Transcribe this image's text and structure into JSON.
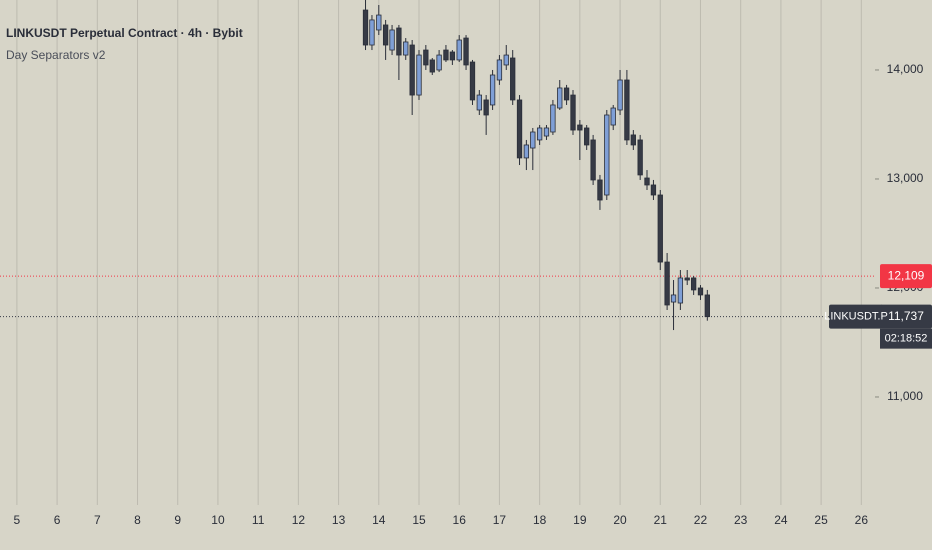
{
  "chart_data": {
    "type": "candlestick",
    "title": "LINKUSDT Perpetual Contract · 4h · Bybit",
    "subtitle": "Day Separators v2",
    "bull_color": "#7f9fd6",
    "bear_color": "#363a45",
    "xlim": [
      4.58,
      26.34
    ],
    "ylim": [
      10009,
      14642
    ],
    "xticks": [
      5,
      6,
      7,
      8,
      9,
      10,
      11,
      12,
      13,
      14,
      15,
      16,
      17,
      18,
      19,
      20,
      21,
      22,
      23,
      24,
      25,
      26
    ],
    "yticks": [
      {
        "value": 11000,
        "label": "11,000"
      },
      {
        "value": 12000,
        "label": "12,000"
      },
      {
        "value": 13000,
        "label": "13,000"
      },
      {
        "value": 14000,
        "label": "14,000"
      }
    ],
    "grid": true,
    "x": [
      13.67,
      13.83,
      14.0,
      14.17,
      14.33,
      14.5,
      14.67,
      14.83,
      15.0,
      15.17,
      15.33,
      15.5,
      15.67,
      15.83,
      16.0,
      16.17,
      16.33,
      16.5,
      16.67,
      16.83,
      17.0,
      17.17,
      17.33,
      17.5,
      17.67,
      17.83,
      18.0,
      18.17,
      18.33,
      18.5,
      18.67,
      18.83,
      19.0,
      19.17,
      19.33,
      19.5,
      19.67,
      19.83,
      20.0,
      20.17,
      20.33,
      20.5,
      20.67,
      20.83,
      21.0,
      21.17,
      21.33,
      21.5,
      21.67,
      21.83,
      22.0,
      22.17
    ],
    "open": [
      14550,
      14229,
      14367,
      14413,
      14183,
      14385,
      14137,
      14229,
      13770,
      14183,
      14092,
      14000,
      14183,
      14165,
      14092,
      14293,
      14073,
      13633,
      13725,
      13679,
      13908,
      14046,
      14110,
      13725,
      13193,
      13284,
      13358,
      13394,
      13431,
      13651,
      13835,
      13770,
      13495,
      13468,
      13358,
      12991,
      12853,
      13495,
      13633,
      13908,
      13404,
      13358,
      13009,
      12945,
      12853,
      12238,
      11871,
      11862,
      12092,
      12092,
      12000,
      11936
    ],
    "high": [
      14642,
      14504,
      14596,
      14459,
      14413,
      14413,
      14293,
      14275,
      14183,
      14229,
      14110,
      14183,
      14229,
      14183,
      14320,
      14320,
      14092,
      13816,
      13770,
      14000,
      14137,
      14229,
      14183,
      13770,
      13358,
      13468,
      13495,
      13495,
      13725,
      13908,
      13863,
      13816,
      13541,
      13495,
      13404,
      13037,
      13633,
      13679,
      14000,
      14000,
      13449,
      13404,
      13082,
      12991,
      12899,
      12321,
      12073,
      12165,
      12165,
      12109,
      12027,
      11982
    ],
    "low": [
      14183,
      14183,
      14321,
      14092,
      14137,
      13908,
      14092,
      13587,
      13725,
      14000,
      13954,
      13981,
      14073,
      14046,
      14073,
      14000,
      13679,
      13587,
      13404,
      13633,
      13863,
      14000,
      13679,
      13128,
      13082,
      13082,
      13312,
      13358,
      13404,
      13633,
      13679,
      13404,
      13174,
      13266,
      12945,
      12716,
      12807,
      13449,
      13587,
      13312,
      13266,
      12991,
      12899,
      12807,
      12165,
      11798,
      11614,
      11798,
      12027,
      11936,
      11890,
      11700
    ],
    "close": [
      14229,
      14459,
      14504,
      14229,
      14367,
      14137,
      14257,
      13770,
      14137,
      14046,
      13981,
      14137,
      14092,
      14092,
      14275,
      14046,
      13725,
      13770,
      13587,
      13954,
      14092,
      14137,
      13725,
      13193,
      13312,
      13431,
      13468,
      13468,
      13679,
      13835,
      13725,
      13449,
      13449,
      13312,
      12991,
      12807,
      13587,
      13651,
      13908,
      13358,
      13312,
      13037,
      12945,
      12853,
      12238,
      11844,
      11936,
      12092,
      12073,
      11982,
      11936,
      11737
    ],
    "price_lines": [
      {
        "value": 12109,
        "label": "12,109",
        "color": "#f23645"
      },
      {
        "value": 11737,
        "label": "11,737",
        "color": "#363a45",
        "symbol": "LINKUSDT.P",
        "countdown": "02:18:52"
      }
    ]
  }
}
